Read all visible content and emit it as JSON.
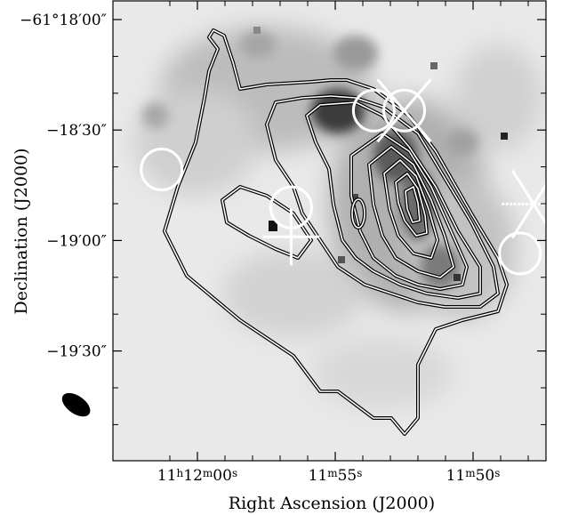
{
  "chart_data": {
    "type": "contour",
    "xlabel": "Right Ascension (J2000)",
    "ylabel": "Declination (J2000)",
    "x_ticks": [
      {
        "ra_label": "11h12m00s",
        "major": "11",
        "h": "h",
        "m": "12",
        "mm": "m",
        "s": "00",
        "ss": "s"
      },
      {
        "ra_label": "11m55s",
        "major": "",
        "h": "",
        "m": "11",
        "mm": "m",
        "s": "55",
        "ss": "s"
      },
      {
        "ra_label": "11m50s",
        "major": "",
        "h": "",
        "m": "11",
        "mm": "m",
        "s": "50",
        "ss": "s"
      }
    ],
    "y_ticks": [
      {
        "label": "−61°18′00″",
        "dec_arcsec_offset": 0
      },
      {
        "label": "−18′30″",
        "dec_arcsec_offset": 30
      },
      {
        "label": "−19′00″",
        "dec_arcsec_offset": 60
      },
      {
        "label": "−19′30″",
        "dec_arcsec_offset": 90
      }
    ],
    "colors": {
      "background_image": "grayscale",
      "contours": "#000000",
      "markers": "#ffffff",
      "beam": "#000000"
    },
    "markers": [
      {
        "kind": "circle",
        "ra_s": 61.3,
        "dec_s": 40.7
      },
      {
        "kind": "circle",
        "ra_s": 56.6,
        "dec_s": 51.0
      },
      {
        "kind": "plus",
        "ra_s": 56.6,
        "dec_s": 59.0
      },
      {
        "kind": "circle",
        "ra_s": 53.6,
        "dec_s": 24.7
      },
      {
        "kind": "circle",
        "ra_s": 52.5,
        "dec_s": 24.7
      },
      {
        "kind": "x",
        "ra_s": 52.5,
        "dec_s": 24.7
      },
      {
        "kind": "circle",
        "ra_s": 48.3,
        "dec_s": 63.5
      },
      {
        "kind": "asterisk",
        "ra_s": 47.8,
        "dec_s": 50.1
      }
    ],
    "beam": {
      "ra_s": 64.4,
      "dec_s": 104.6
    }
  }
}
